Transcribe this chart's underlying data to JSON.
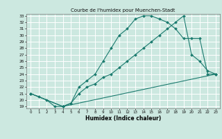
{
  "title": "Courbe de l'humidex pour Muenchen-Stadt",
  "xlabel": "Humidex (Indice chaleur)",
  "xlim": [
    -0.5,
    23.5
  ],
  "ylim": [
    18.7,
    33.3
  ],
  "xticks": [
    0,
    1,
    2,
    3,
    4,
    5,
    6,
    7,
    8,
    9,
    10,
    11,
    12,
    13,
    14,
    15,
    16,
    17,
    18,
    19,
    20,
    21,
    22,
    23
  ],
  "yticks": [
    19,
    20,
    21,
    22,
    23,
    24,
    25,
    26,
    27,
    28,
    29,
    30,
    31,
    32,
    33
  ],
  "bg_color": "#cce8e0",
  "grid_color": "#ffffff",
  "line_color": "#1a7a6e",
  "line1_x": [
    0,
    1,
    2,
    3,
    4,
    5,
    6,
    7,
    8,
    9,
    10,
    11,
    12,
    13,
    14,
    15,
    16,
    17,
    18,
    19,
    20,
    21,
    22,
    23
  ],
  "line1_y": [
    21,
    20.5,
    20,
    19,
    19,
    19.5,
    22,
    23,
    24,
    26,
    28,
    30,
    31,
    32.5,
    33,
    33,
    32.5,
    32,
    31,
    29.5,
    29.5,
    29.5,
    24,
    24
  ],
  "line2_x": [
    0,
    4,
    5,
    6,
    7,
    8,
    9,
    10,
    11,
    12,
    13,
    14,
    15,
    16,
    17,
    18,
    19,
    20,
    21,
    22,
    23
  ],
  "line2_y": [
    21,
    19,
    19.5,
    21,
    22,
    22.5,
    23.5,
    24,
    25,
    26,
    27,
    28,
    29,
    30,
    31,
    32,
    33,
    27,
    26,
    24.5,
    24
  ],
  "line3_x": [
    0,
    4,
    23
  ],
  "line3_y": [
    21,
    19,
    24
  ]
}
